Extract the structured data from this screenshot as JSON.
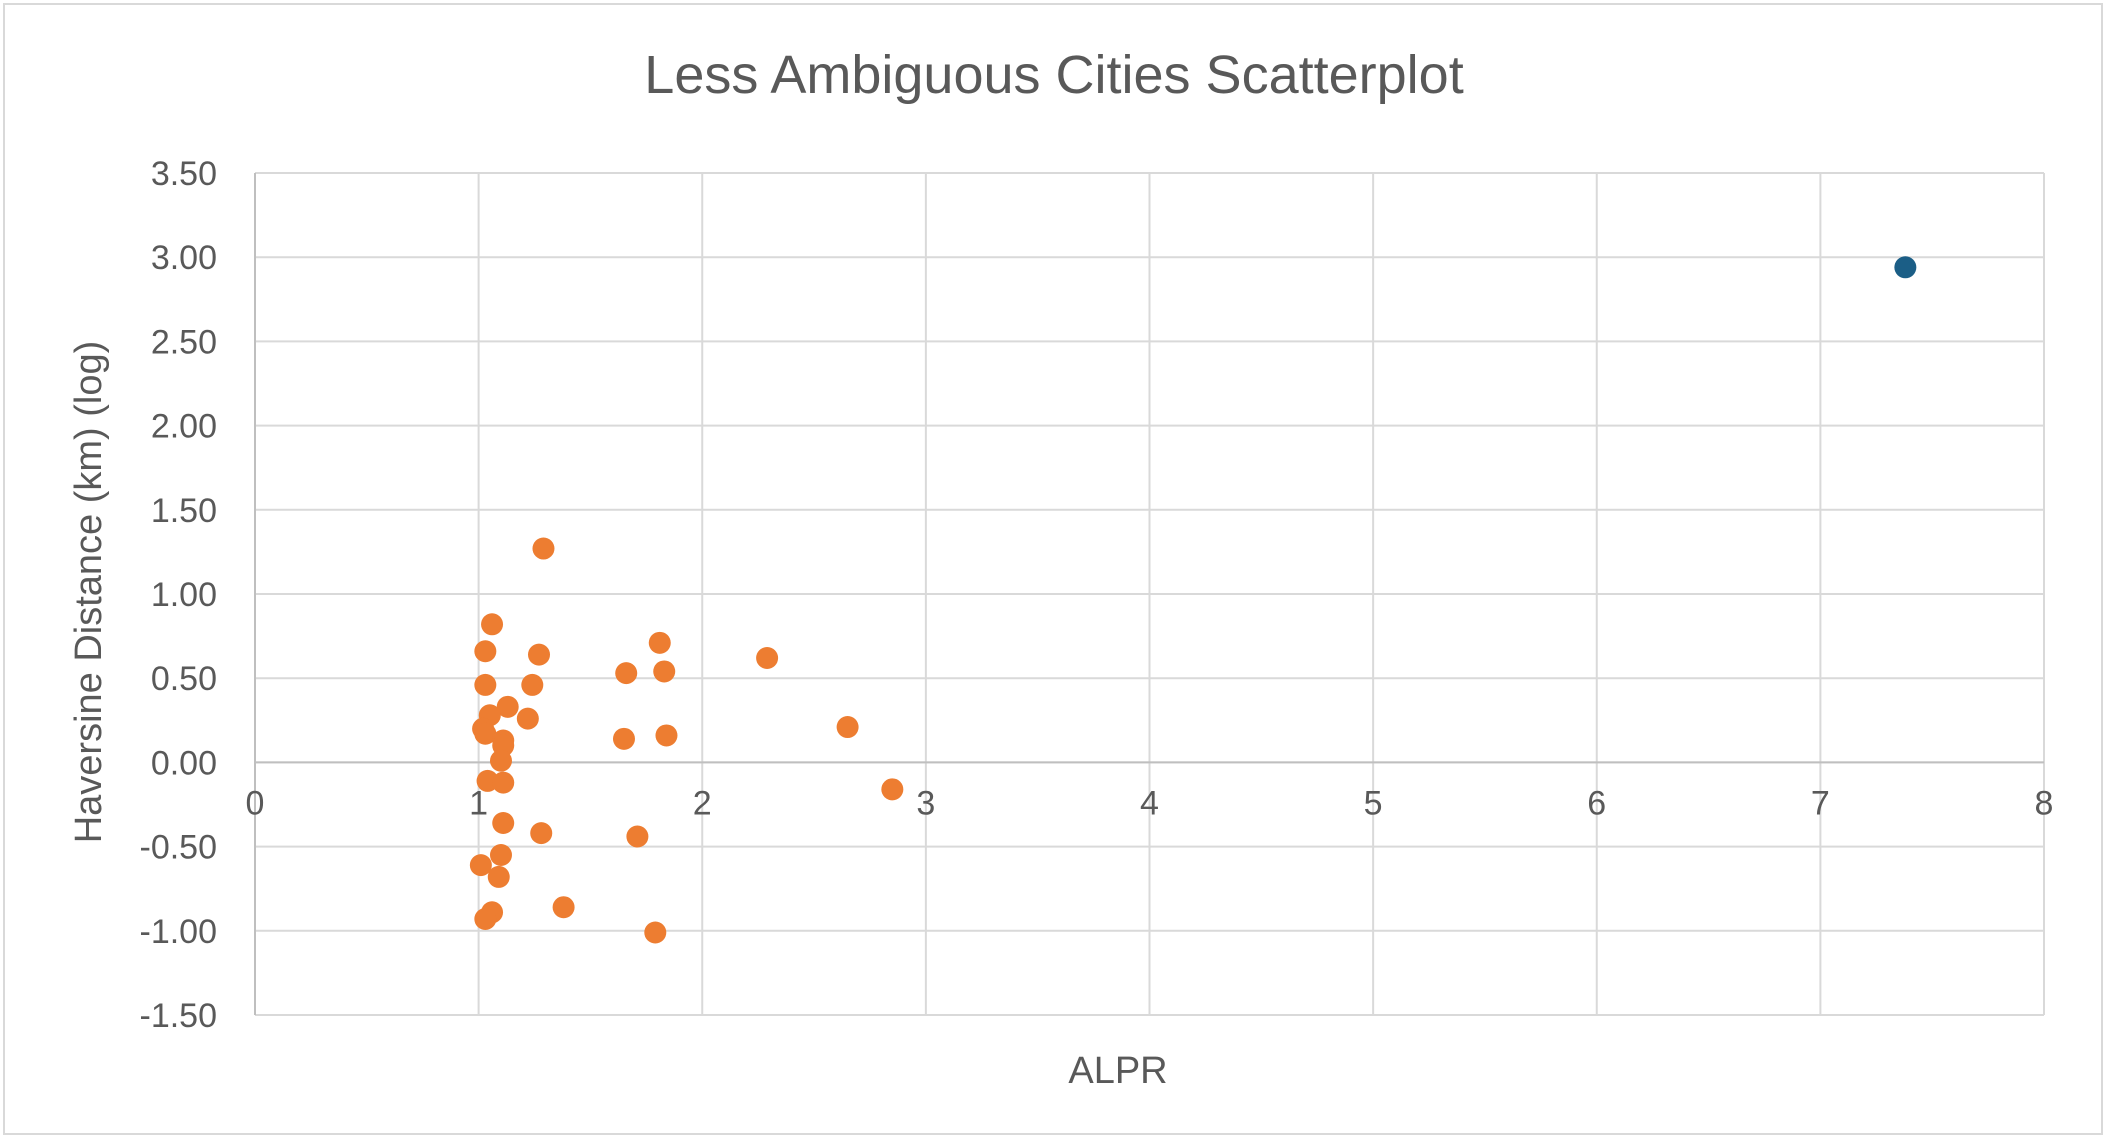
{
  "chart_data": {
    "type": "scatter",
    "title": "Less Ambiguous Cities Scatterplot",
    "xlabel": "ALPR",
    "ylabel": "Haversine Distance (km) (log)",
    "xlim": [
      0,
      8
    ],
    "ylim": [
      -1.5,
      3.5
    ],
    "x_ticks": [
      "0",
      "1",
      "2",
      "3",
      "4",
      "5",
      "6",
      "7",
      "8"
    ],
    "y_ticks": [
      "-1.50",
      "-1.00",
      "-0.50",
      "0.00",
      "0.50",
      "1.00",
      "1.50",
      "2.00",
      "2.50",
      "3.00",
      "3.50"
    ],
    "grid": true,
    "legend": "none",
    "series": [
      {
        "color": "#ed7d31",
        "points": [
          {
            "x": 1.29,
            "y": 1.27
          },
          {
            "x": 1.06,
            "y": 0.82
          },
          {
            "x": 1.03,
            "y": 0.66
          },
          {
            "x": 1.27,
            "y": 0.64
          },
          {
            "x": 1.81,
            "y": 0.71
          },
          {
            "x": 2.29,
            "y": 0.62
          },
          {
            "x": 1.66,
            "y": 0.53
          },
          {
            "x": 1.83,
            "y": 0.54
          },
          {
            "x": 1.03,
            "y": 0.46
          },
          {
            "x": 1.24,
            "y": 0.46
          },
          {
            "x": 1.13,
            "y": 0.33
          },
          {
            "x": 1.05,
            "y": 0.28
          },
          {
            "x": 1.22,
            "y": 0.26
          },
          {
            "x": 1.02,
            "y": 0.2
          },
          {
            "x": 1.03,
            "y": 0.17
          },
          {
            "x": 1.11,
            "y": 0.13
          },
          {
            "x": 1.11,
            "y": 0.1
          },
          {
            "x": 1.65,
            "y": 0.14
          },
          {
            "x": 1.84,
            "y": 0.16
          },
          {
            "x": 2.65,
            "y": 0.21
          },
          {
            "x": 1.1,
            "y": 0.01
          },
          {
            "x": 1.04,
            "y": -0.11
          },
          {
            "x": 1.11,
            "y": -0.12
          },
          {
            "x": 2.85,
            "y": -0.16
          },
          {
            "x": 1.11,
            "y": -0.36
          },
          {
            "x": 1.28,
            "y": -0.42
          },
          {
            "x": 1.71,
            "y": -0.44
          },
          {
            "x": 1.1,
            "y": -0.55
          },
          {
            "x": 1.01,
            "y": -0.61
          },
          {
            "x": 1.09,
            "y": -0.68
          },
          {
            "x": 1.06,
            "y": -0.89
          },
          {
            "x": 1.03,
            "y": -0.93
          },
          {
            "x": 1.38,
            "y": -0.86
          },
          {
            "x": 1.79,
            "y": -1.01
          }
        ]
      },
      {
        "color": "#1b5e86",
        "points": [
          {
            "x": 7.38,
            "y": 2.94
          }
        ]
      }
    ]
  }
}
